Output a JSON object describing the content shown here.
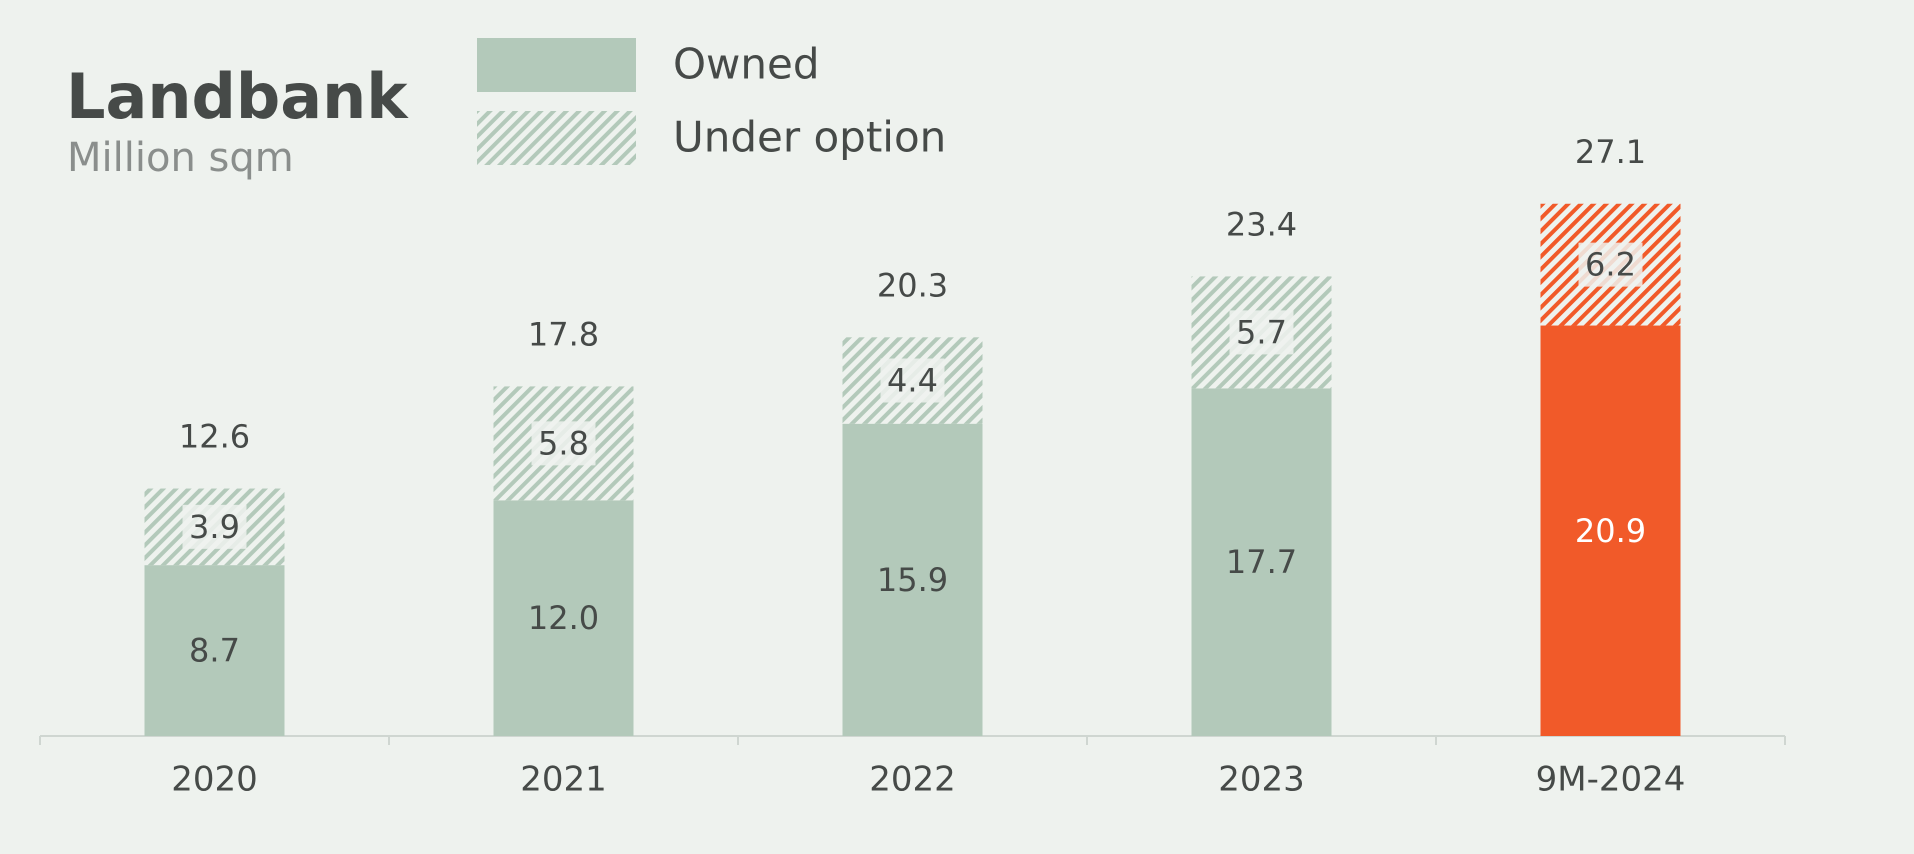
{
  "chart_data": {
    "type": "stacked_bar",
    "title": "Landbank",
    "subtitle": "Million sqm",
    "categories": [
      "2020",
      "2021",
      "2022",
      "2023",
      "9M-2024"
    ],
    "series": [
      {
        "name": "Owned",
        "color": "#b3c9ba",
        "pattern": "solid",
        "colors": [
          "#b3c9ba",
          "#b3c9ba",
          "#b3c9ba",
          "#b3c9ba",
          "#f15a29"
        ],
        "values": [
          8.7,
          12.0,
          15.9,
          17.7,
          20.9
        ],
        "value_labels": [
          "8.7",
          "12.0",
          "15.9",
          "17.7",
          "20.9"
        ]
      },
      {
        "name": "Under option",
        "color": "#b3c9ba",
        "pattern": "hatched",
        "colors": [
          "#b3c9ba",
          "#b3c9ba",
          "#b3c9ba",
          "#b3c9ba",
          "#f15a29"
        ],
        "values": [
          3.9,
          5.8,
          4.4,
          5.7,
          6.2
        ],
        "value_labels": [
          "3.9",
          "5.8",
          "4.4",
          "5.7",
          "6.2"
        ]
      }
    ],
    "totals": [
      12.6,
      17.8,
      20.3,
      23.4,
      27.1
    ],
    "total_labels": [
      "12.6",
      "17.8",
      "20.3",
      "23.4",
      "27.1"
    ]
  }
}
